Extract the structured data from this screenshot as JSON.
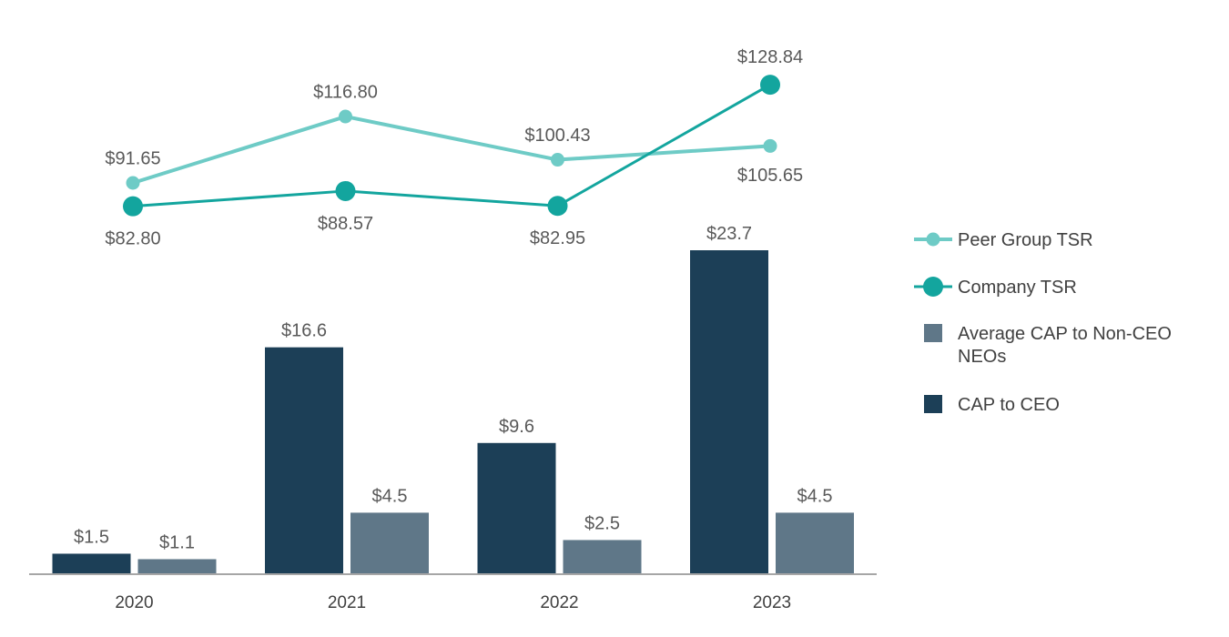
{
  "chart_data": {
    "type": "bar",
    "categories": [
      "2020",
      "2021",
      "2022",
      "2023"
    ],
    "bar_series": [
      {
        "name": "CAP to CEO",
        "color": "#1c3f57",
        "values": [
          1.5,
          16.6,
          9.6,
          23.7
        ],
        "labels": [
          "$1.5",
          "$16.6",
          "$9.6",
          "$23.7"
        ]
      },
      {
        "name": "Average CAP to Non-CEO NEOs",
        "color": "#5f7788",
        "values": [
          1.1,
          4.5,
          2.5,
          4.5
        ],
        "labels": [
          "$1.1",
          "$4.5",
          "$2.5",
          "$4.5"
        ]
      }
    ],
    "line_series": [
      {
        "name": "Peer Group TSR",
        "color": "#6ecbc6",
        "values": [
          91.65,
          116.8,
          100.43,
          105.65
        ],
        "labels": [
          "$91.65",
          "$116.80",
          "$100.43",
          "$105.65"
        ]
      },
      {
        "name": "Company TSR",
        "color": "#13a59e",
        "values": [
          82.8,
          88.57,
          82.95,
          128.84
        ],
        "labels": [
          "$82.80",
          "$88.57",
          "$82.95",
          "$128.84"
        ]
      }
    ],
    "legend": {
      "position": "right",
      "items": [
        {
          "label_lines": [
            "Peer Group TSR"
          ],
          "kind": "line-small",
          "color": "#6ecbc6"
        },
        {
          "label_lines": [
            "Company TSR"
          ],
          "kind": "line-large",
          "color": "#13a59e"
        },
        {
          "label_lines": [
            "Average CAP to Non-CEO",
            "NEOs"
          ],
          "kind": "square",
          "color": "#5f7788"
        },
        {
          "label_lines": [
            "CAP to CEO"
          ],
          "kind": "square",
          "color": "#1c3f57"
        }
      ]
    },
    "bar_ylim": [
      0,
      25
    ],
    "line_ylim": [
      75,
      135
    ],
    "grid": false,
    "title": "",
    "xlabel": "",
    "ylabel": ""
  }
}
